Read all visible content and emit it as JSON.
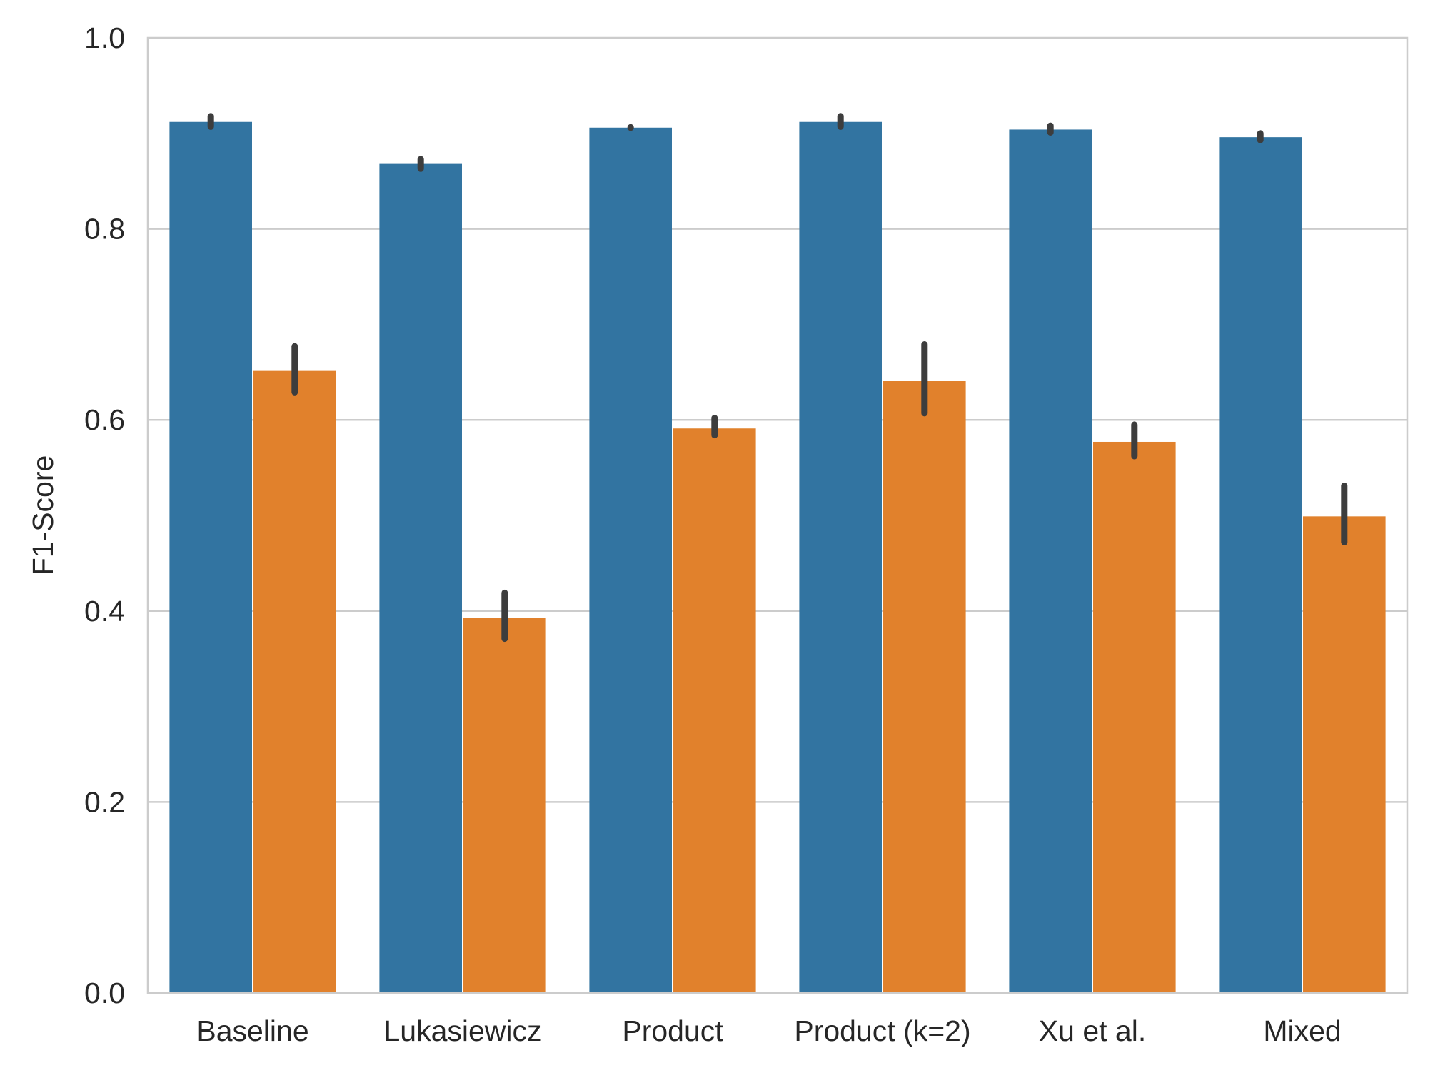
{
  "chart_data": {
    "type": "bar",
    "title": "",
    "xlabel": "",
    "ylabel": "F1-Score",
    "ylim": [
      0,
      1.0
    ],
    "yticks": [
      "0.0",
      "0.2",
      "0.4",
      "0.6",
      "0.8",
      "1.0"
    ],
    "grid": "horizontal",
    "categories": [
      "Baseline",
      "Lukasiewicz",
      "Product",
      "Product (k=2)",
      "Xu et al.",
      "Mixed"
    ],
    "series": [
      {
        "name": "series-1",
        "color": "#3274a1",
        "values": [
          0.912,
          0.868,
          0.906,
          0.912,
          0.904,
          0.896
        ],
        "error_low": [
          0.907,
          0.863,
          0.906,
          0.907,
          0.901,
          0.893
        ],
        "error_high": [
          0.918,
          0.873,
          0.906,
          0.918,
          0.908,
          0.9
        ]
      },
      {
        "name": "series-2",
        "color": "#e1812c",
        "values": [
          0.652,
          0.393,
          0.591,
          0.641,
          0.577,
          0.499
        ],
        "error_low": [
          0.629,
          0.371,
          0.584,
          0.607,
          0.562,
          0.472
        ],
        "error_high": [
          0.677,
          0.419,
          0.602,
          0.679,
          0.595,
          0.531
        ]
      }
    ]
  }
}
